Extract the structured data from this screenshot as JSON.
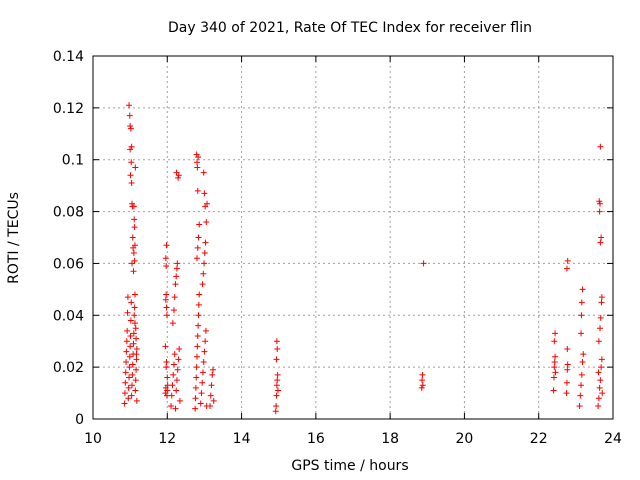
{
  "chart_data": {
    "type": "scatter",
    "title": "Day 340 of 2021, Rate Of TEC Index for receiver flin",
    "xlabel": "GPS time / hours",
    "ylabel": "ROTI / TECUs",
    "xlim": [
      10,
      24
    ],
    "ylim": [
      0,
      0.14
    ],
    "xticks": [
      10,
      12,
      14,
      16,
      18,
      20,
      22,
      24
    ],
    "yticks": [
      0,
      0.02,
      0.04,
      0.06,
      0.08,
      0.1,
      0.12,
      0.14
    ],
    "xtick_labels": [
      "10",
      "12",
      "14",
      "16",
      "18",
      "20",
      "22",
      "24"
    ],
    "ytick_labels": [
      "0",
      "0.02",
      "0.04",
      "0.06",
      "0.08",
      "0.1",
      "0.12",
      "0.14"
    ],
    "grid": true,
    "legend": "none",
    "marker": "plus",
    "color": "#ff0000",
    "series": [
      {
        "points": [
          [
            10.85,
            0.006
          ],
          [
            10.86,
            0.01
          ],
          [
            10.87,
            0.014
          ],
          [
            10.88,
            0.018
          ],
          [
            10.89,
            0.022
          ],
          [
            10.9,
            0.026
          ],
          [
            10.91,
            0.03
          ],
          [
            10.92,
            0.034
          ],
          [
            10.93,
            0.041
          ],
          [
            10.94,
            0.047
          ],
          [
            10.95,
            0.008
          ],
          [
            10.96,
            0.012
          ],
          [
            10.97,
            0.016
          ],
          [
            10.98,
            0.02
          ],
          [
            10.99,
            0.024
          ],
          [
            11.0,
            0.028
          ],
          [
            11.01,
            0.032
          ],
          [
            11.02,
            0.038
          ],
          [
            11.03,
            0.045
          ],
          [
            10.97,
            0.121
          ],
          [
            10.99,
            0.117
          ],
          [
            11.0,
            0.113
          ],
          [
            11.02,
            0.112
          ],
          [
            11.0,
            0.104
          ],
          [
            11.03,
            0.099
          ],
          [
            11.01,
            0.094
          ],
          [
            11.04,
            0.091
          ],
          [
            11.04,
            0.105
          ],
          [
            11.05,
            0.083
          ],
          [
            11.06,
            0.082
          ],
          [
            11.07,
            0.07
          ],
          [
            11.08,
            0.066
          ],
          [
            11.09,
            0.057
          ],
          [
            11.05,
            0.06
          ],
          [
            11.1,
            0.082
          ],
          [
            11.11,
            0.077
          ],
          [
            11.12,
            0.074
          ],
          [
            11.13,
            0.067
          ],
          [
            11.14,
            0.097
          ],
          [
            11.1,
            0.064
          ],
          [
            11.12,
            0.061
          ],
          [
            11.04,
            0.009
          ],
          [
            11.05,
            0.013
          ],
          [
            11.06,
            0.017
          ],
          [
            11.07,
            0.021
          ],
          [
            11.08,
            0.025
          ],
          [
            11.09,
            0.029
          ],
          [
            11.1,
            0.033
          ],
          [
            11.11,
            0.04
          ],
          [
            11.12,
            0.043
          ],
          [
            11.13,
            0.048
          ],
          [
            11.14,
            0.011
          ],
          [
            11.15,
            0.015
          ],
          [
            11.16,
            0.019
          ],
          [
            11.17,
            0.023
          ],
          [
            11.18,
            0.027
          ],
          [
            11.15,
            0.035
          ],
          [
            11.16,
            0.031
          ],
          [
            11.17,
            0.025
          ],
          [
            11.18,
            0.007
          ],
          [
            11.13,
            0.037
          ],
          [
            11.95,
            0.01
          ],
          [
            11.96,
            0.012
          ],
          [
            11.97,
            0.02
          ],
          [
            11.98,
            0.022
          ],
          [
            11.99,
            0.009
          ],
          [
            12.0,
            0.011
          ],
          [
            12.01,
            0.013
          ],
          [
            11.96,
            0.046
          ],
          [
            11.97,
            0.048
          ],
          [
            11.98,
            0.043
          ],
          [
            11.99,
            0.04
          ],
          [
            11.96,
            0.062
          ],
          [
            11.98,
            0.067
          ],
          [
            11.97,
            0.059
          ],
          [
            11.95,
            0.028
          ],
          [
            12.0,
            0.016
          ],
          [
            12.1,
            0.005
          ],
          [
            12.12,
            0.009
          ],
          [
            12.14,
            0.013
          ],
          [
            12.16,
            0.017
          ],
          [
            12.18,
            0.021
          ],
          [
            12.2,
            0.025
          ],
          [
            12.22,
            0.004
          ],
          [
            12.24,
            0.011
          ],
          [
            12.26,
            0.015
          ],
          [
            12.28,
            0.019
          ],
          [
            12.3,
            0.023
          ],
          [
            12.32,
            0.027
          ],
          [
            12.34,
            0.007
          ],
          [
            12.15,
            0.037
          ],
          [
            12.18,
            0.042
          ],
          [
            12.2,
            0.047
          ],
          [
            12.22,
            0.052
          ],
          [
            12.24,
            0.055
          ],
          [
            12.26,
            0.058
          ],
          [
            12.27,
            0.06
          ],
          [
            12.25,
            0.095
          ],
          [
            12.29,
            0.093
          ],
          [
            12.31,
            0.094
          ],
          [
            12.75,
            0.004
          ],
          [
            12.76,
            0.008
          ],
          [
            12.77,
            0.012
          ],
          [
            12.78,
            0.016
          ],
          [
            12.79,
            0.02
          ],
          [
            12.8,
            0.024
          ],
          [
            12.81,
            0.028
          ],
          [
            12.82,
            0.032
          ],
          [
            12.83,
            0.036
          ],
          [
            12.84,
            0.04
          ],
          [
            12.85,
            0.044
          ],
          [
            12.86,
            0.048
          ],
          [
            12.8,
            0.062
          ],
          [
            12.82,
            0.066
          ],
          [
            12.84,
            0.07
          ],
          [
            12.86,
            0.075
          ],
          [
            12.82,
            0.088
          ],
          [
            12.79,
            0.102
          ],
          [
            12.8,
            0.099
          ],
          [
            12.81,
            0.097
          ],
          [
            12.83,
            0.101
          ],
          [
            12.9,
            0.006
          ],
          [
            12.92,
            0.01
          ],
          [
            12.94,
            0.014
          ],
          [
            12.96,
            0.018
          ],
          [
            12.98,
            0.022
          ],
          [
            13.0,
            0.026
          ],
          [
            13.02,
            0.03
          ],
          [
            13.04,
            0.034
          ],
          [
            13.06,
            0.005
          ],
          [
            12.95,
            0.052
          ],
          [
            12.97,
            0.056
          ],
          [
            12.99,
            0.06
          ],
          [
            13.01,
            0.064
          ],
          [
            13.03,
            0.068
          ],
          [
            13.05,
            0.076
          ],
          [
            13.07,
            0.083
          ],
          [
            13.02,
            0.082
          ],
          [
            13.0,
            0.087
          ],
          [
            12.98,
            0.095
          ],
          [
            13.15,
            0.005
          ],
          [
            13.17,
            0.009
          ],
          [
            13.19,
            0.013
          ],
          [
            13.21,
            0.017
          ],
          [
            13.23,
            0.019
          ],
          [
            13.25,
            0.007
          ],
          [
            14.92,
            0.003
          ],
          [
            14.93,
            0.005
          ],
          [
            14.94,
            0.009
          ],
          [
            14.95,
            0.013
          ],
          [
            14.96,
            0.015
          ],
          [
            14.97,
            0.017
          ],
          [
            14.94,
            0.023
          ],
          [
            14.96,
            0.027
          ],
          [
            14.95,
            0.03
          ],
          [
            14.98,
            0.011
          ],
          [
            18.85,
            0.012
          ],
          [
            18.86,
            0.015
          ],
          [
            18.87,
            0.017
          ],
          [
            18.88,
            0.013
          ],
          [
            18.9,
            0.06
          ],
          [
            22.4,
            0.011
          ],
          [
            22.41,
            0.016
          ],
          [
            22.42,
            0.02
          ],
          [
            22.43,
            0.022
          ],
          [
            22.44,
            0.024
          ],
          [
            22.45,
            0.018
          ],
          [
            22.42,
            0.03
          ],
          [
            22.44,
            0.033
          ],
          [
            22.75,
            0.01
          ],
          [
            22.76,
            0.014
          ],
          [
            22.77,
            0.019
          ],
          [
            22.78,
            0.021
          ],
          [
            22.77,
            0.027
          ],
          [
            22.76,
            0.058
          ],
          [
            22.78,
            0.061
          ],
          [
            23.1,
            0.005
          ],
          [
            23.12,
            0.009
          ],
          [
            23.14,
            0.013
          ],
          [
            23.16,
            0.017
          ],
          [
            23.18,
            0.022
          ],
          [
            23.2,
            0.025
          ],
          [
            23.14,
            0.033
          ],
          [
            23.16,
            0.045
          ],
          [
            23.18,
            0.05
          ],
          [
            23.15,
            0.04
          ],
          [
            23.6,
            0.005
          ],
          [
            23.62,
            0.008
          ],
          [
            23.64,
            0.012
          ],
          [
            23.66,
            0.015
          ],
          [
            23.68,
            0.02
          ],
          [
            23.7,
            0.023
          ],
          [
            23.62,
            0.03
          ],
          [
            23.65,
            0.035
          ],
          [
            23.67,
            0.039
          ],
          [
            23.69,
            0.045
          ],
          [
            23.7,
            0.047
          ],
          [
            23.66,
            0.068
          ],
          [
            23.68,
            0.07
          ],
          [
            23.64,
            0.08
          ],
          [
            23.63,
            0.084
          ],
          [
            23.65,
            0.083
          ],
          [
            23.66,
            0.105
          ],
          [
            23.61,
            0.018
          ],
          [
            23.71,
            0.01
          ]
        ]
      }
    ]
  }
}
